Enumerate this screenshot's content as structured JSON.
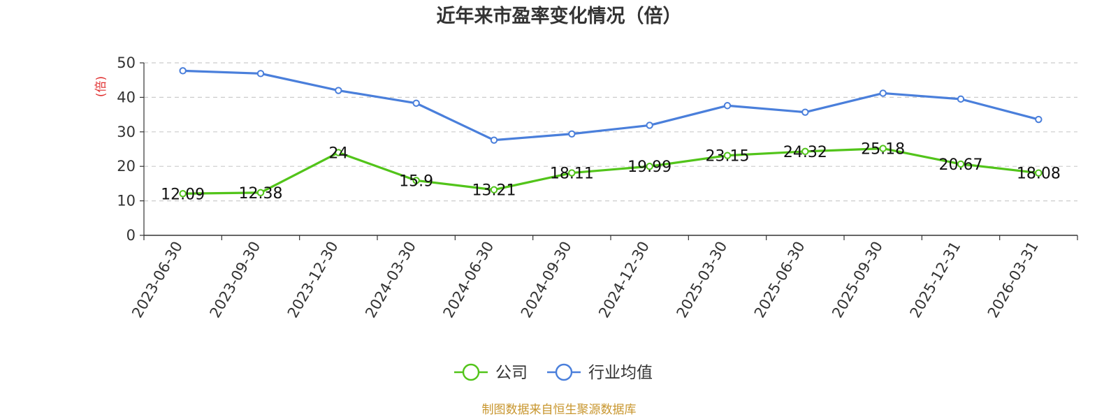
{
  "chart_data": {
    "type": "line",
    "title": "近年来市盈率变化情况（倍）",
    "ylabel": "(倍)",
    "ylim": [
      0,
      50
    ],
    "yticks": [
      0,
      10,
      20,
      30,
      40,
      50
    ],
    "categories": [
      "2023-06-30",
      "2023-09-30",
      "2023-12-30",
      "2024-03-30",
      "2024-06-30",
      "2024-09-30",
      "2024-12-30",
      "2025-03-30",
      "2025-06-30",
      "2025-09-30",
      "2025-12-31",
      "2026-03-31"
    ],
    "series": [
      {
        "name": "公司",
        "color": "#52c41a",
        "values": [
          12.09,
          12.38,
          24,
          15.9,
          13.21,
          18.11,
          19.99,
          23.15,
          24.32,
          25.18,
          20.67,
          18.08
        ],
        "labels": [
          "12.09",
          "12.38",
          "24",
          "15.9",
          "13.21",
          "18.11",
          "19.99",
          "23.15",
          "24.32",
          "25.18",
          "20.67",
          "18.08"
        ]
      },
      {
        "name": "行业均值",
        "color": "#4a7fdb",
        "values": [
          47.7,
          46.9,
          42.0,
          38.3,
          27.6,
          29.4,
          31.9,
          37.6,
          35.7,
          41.2,
          39.5,
          33.6
        ]
      }
    ],
    "grid": true,
    "legend_position": "bottom-center",
    "source": "制图数据来自恒生聚源数据库",
    "ylabel_color": "#e03030",
    "source_color": "#c8962e"
  }
}
